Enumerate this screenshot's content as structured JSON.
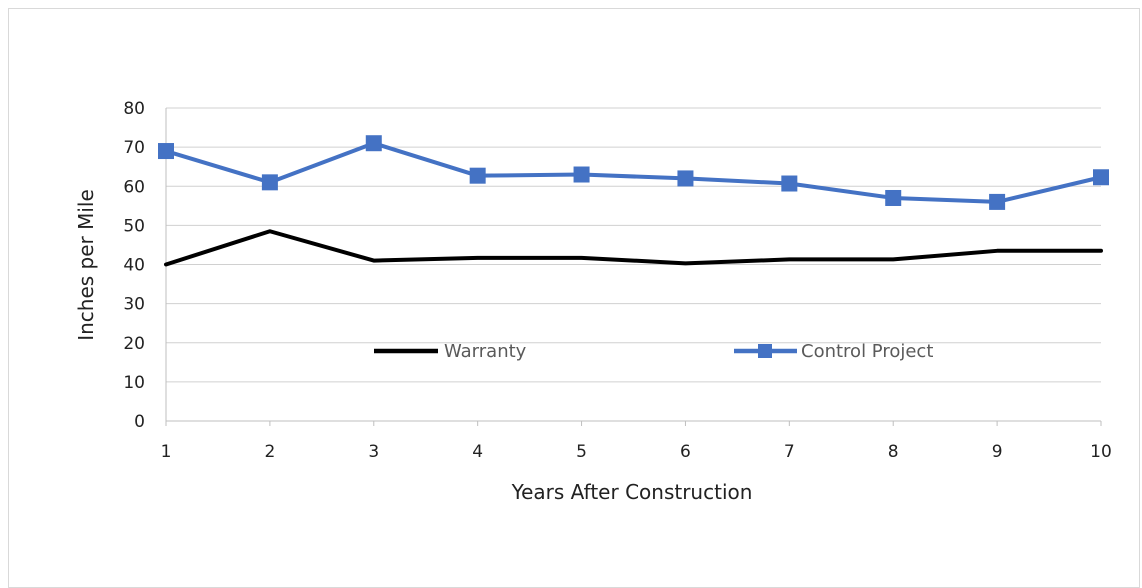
{
  "chart_data": {
    "type": "line",
    "title": "",
    "xlabel": "Years After Construction",
    "ylabel": "Inches per Mile",
    "x": [
      1,
      2,
      3,
      4,
      5,
      6,
      7,
      8,
      9,
      10
    ],
    "ylim": [
      0,
      80
    ],
    "yticks": [
      0,
      10,
      20,
      30,
      40,
      50,
      60,
      70,
      80
    ],
    "grid": true,
    "legend_position": "inside-lower-center",
    "series": [
      {
        "name": "Warranty",
        "color": "#000000",
        "marker": "none",
        "values": [
          40,
          48.5,
          41,
          41.7,
          41.7,
          40.3,
          41.3,
          41.3,
          43.5,
          43.5
        ]
      },
      {
        "name": "Control Project",
        "color": "#4472C4",
        "marker": "square",
        "values": [
          69,
          61,
          71,
          62.7,
          63,
          62,
          60.7,
          57,
          56,
          62.3
        ]
      }
    ]
  }
}
